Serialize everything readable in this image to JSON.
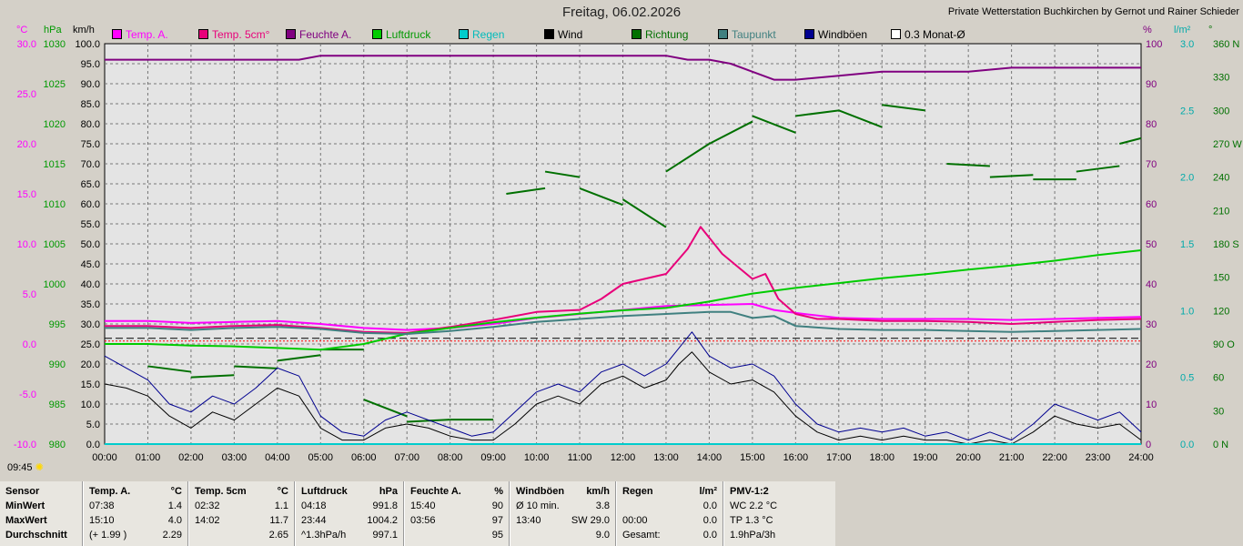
{
  "header": {
    "title": "Freitag, 06.02.2026",
    "credit": "Private Wetterstation Buchkirchen by Gernot und Rainer Schieder",
    "time_marker": "09:45"
  },
  "units": {
    "temp": "°C",
    "pressure": "hPa",
    "wind": "km/h",
    "humidity": "%",
    "rain": "l/m²",
    "direction": "°"
  },
  "legend": [
    {
      "label": "Temp. A.",
      "color": "#ff00ff",
      "text_color": "#ff00ff"
    },
    {
      "label": "Temp. 5cm°",
      "color": "#e8007a",
      "text_color": "#e8007a"
    },
    {
      "label": "Feuchte A.",
      "color": "#800080",
      "text_color": "#800080"
    },
    {
      "label": "Luftdruck",
      "color": "#00cc00",
      "text_color": "#009900"
    },
    {
      "label": "Regen",
      "color": "#00cccc",
      "text_color": "#00bbbb"
    },
    {
      "label": "Wind",
      "color": "#000000",
      "text_color": "#000000"
    },
    {
      "label": "Richtung",
      "color": "#007000",
      "text_color": "#007000"
    },
    {
      "label": "Taupunkt",
      "color": "#408080",
      "text_color": "#408080"
    },
    {
      "label": "Windböen",
      "color": "#000090",
      "text_color": "#000000"
    },
    {
      "label": "0.3 Monat-Ø",
      "color": "#ffffff",
      "text_color": "#000000"
    }
  ],
  "chart_data": {
    "type": "line",
    "x_ticks": [
      "00:00",
      "01:00",
      "02:00",
      "03:00",
      "04:00",
      "05:00",
      "06:00",
      "07:00",
      "08:00",
      "09:00",
      "10:00",
      "11:00",
      "12:00",
      "13:00",
      "14:00",
      "15:00",
      "16:00",
      "17:00",
      "18:00",
      "19:00",
      "20:00",
      "21:00",
      "22:00",
      "23:00",
      "24:00"
    ],
    "axes": {
      "temp": {
        "min": -10,
        "max": 30,
        "ticks": [
          "30.0",
          "25.0",
          "20.0",
          "15.0",
          "10.0",
          "5.0",
          "0.0",
          "-5.0",
          "-10.0"
        ]
      },
      "pressure": {
        "min": 980,
        "max": 1030,
        "ticks": [
          "1030",
          "1025",
          "1020",
          "1015",
          "1010",
          "1005",
          "1000",
          "995",
          "990",
          "985",
          "980"
        ]
      },
      "wind": {
        "min": 0,
        "max": 100,
        "ticks": [
          "100.0",
          "95.0",
          "90.0",
          "85.0",
          "80.0",
          "75.0",
          "70.0",
          "65.0",
          "60.0",
          "55.0",
          "50.0",
          "45.0",
          "40.0",
          "35.0",
          "30.0",
          "25.0",
          "20.0",
          "15.0",
          "10.0",
          "5.0",
          "0.0"
        ]
      },
      "humidity": {
        "min": 0,
        "max": 100,
        "ticks": [
          "100",
          "90",
          "80",
          "70",
          "60",
          "50",
          "40",
          "30",
          "20",
          "10",
          "0"
        ]
      },
      "rain": {
        "min": 0,
        "max": 3,
        "ticks": [
          "3.0",
          "2.5",
          "2.0",
          "1.5",
          "1.0",
          "0.5",
          "0.0"
        ]
      },
      "direction": {
        "min": 0,
        "max": 360,
        "ticks": [
          "360 N",
          "330",
          "300",
          "270 W",
          "240",
          "210",
          "180 S",
          "150",
          "120",
          "90 O",
          "60",
          "30",
          "0 N"
        ]
      }
    },
    "series": [
      {
        "name": "Feuchte A.",
        "axis": "humidity",
        "x": [
          0,
          2,
          4,
          4.5,
          5,
          6,
          7,
          8,
          9,
          10,
          11,
          12,
          13,
          13.5,
          14,
          14.5,
          15,
          15.5,
          16,
          17,
          18,
          19,
          20,
          21,
          22,
          23,
          24
        ],
        "y": [
          96,
          96,
          96,
          96,
          97,
          97,
          97,
          97,
          97,
          97,
          97,
          97,
          97,
          96,
          96,
          95,
          93,
          91,
          91,
          92,
          93,
          93,
          93,
          94,
          94,
          94,
          94
        ]
      },
      {
        "name": "Temp. A.",
        "axis": "temp",
        "x": [
          0,
          1,
          2,
          3,
          4,
          5,
          6,
          7,
          8,
          9,
          10,
          11,
          12,
          13,
          14,
          15,
          15.5,
          16,
          17,
          18,
          19,
          20,
          21,
          22,
          23,
          24
        ],
        "y": [
          2.3,
          2.3,
          2.1,
          2.2,
          2.3,
          2.0,
          1.6,
          1.4,
          1.6,
          2.0,
          2.6,
          3.0,
          3.4,
          3.8,
          3.9,
          4.0,
          3.4,
          3.1,
          2.6,
          2.5,
          2.5,
          2.5,
          2.4,
          2.5,
          2.6,
          2.7
        ]
      },
      {
        "name": "Temp. 5cm°",
        "axis": "temp",
        "x": [
          0,
          1,
          2,
          3,
          4,
          5,
          6,
          7,
          8,
          9,
          10,
          11,
          11.5,
          12,
          12.5,
          13,
          13.5,
          13.8,
          14.3,
          15,
          15.3,
          15.6,
          16,
          16.5,
          17,
          18,
          19,
          20,
          21,
          22,
          23,
          24
        ],
        "y": [
          1.8,
          1.8,
          1.6,
          1.8,
          1.9,
          1.6,
          1.2,
          1.1,
          1.7,
          2.4,
          3.2,
          3.4,
          4.5,
          6.0,
          6.5,
          7.0,
          9.5,
          11.7,
          9.0,
          6.5,
          7.0,
          4.5,
          3.0,
          2.5,
          2.5,
          2.3,
          2.3,
          2.2,
          2.0,
          2.2,
          2.4,
          2.5
        ]
      },
      {
        "name": "Luftdruck",
        "axis": "pressure",
        "x": [
          0,
          1,
          2,
          3,
          4,
          5,
          6,
          7,
          8,
          9,
          10,
          11,
          12,
          13,
          14,
          15,
          16,
          17,
          18,
          19,
          20,
          21,
          22,
          23,
          24
        ],
        "y": [
          992.5,
          992.5,
          992.3,
          992.2,
          992.0,
          991.8,
          992.5,
          993.8,
          994.5,
          995.2,
          995.8,
          996.3,
          996.7,
          997.0,
          997.8,
          998.8,
          999.5,
          1000.1,
          1000.7,
          1001.2,
          1001.8,
          1002.3,
          1002.9,
          1003.6,
          1004.2
        ]
      },
      {
        "name": "Taupunkt",
        "axis": "temp",
        "x": [
          0,
          1,
          2,
          3,
          4,
          5,
          6,
          7,
          8,
          9,
          10,
          11,
          12,
          13,
          14,
          14.5,
          15,
          15.5,
          16,
          17,
          18,
          19,
          20,
          21,
          22,
          23,
          24
        ],
        "y": [
          1.6,
          1.6,
          1.4,
          1.6,
          1.7,
          1.5,
          1.1,
          1.0,
          1.3,
          1.7,
          2.2,
          2.5,
          2.8,
          3.0,
          3.2,
          3.2,
          2.6,
          2.8,
          1.8,
          1.5,
          1.4,
          1.4,
          1.3,
          1.2,
          1.3,
          1.4,
          1.5
        ]
      },
      {
        "name": "Windböen",
        "axis": "wind",
        "x": [
          0,
          0.5,
          1,
          1.5,
          2,
          2.5,
          3,
          3.5,
          4,
          4.5,
          5,
          5.5,
          6,
          6.5,
          7,
          7.5,
          8,
          8.5,
          9,
          9.5,
          10,
          10.5,
          11,
          11.5,
          12,
          12.5,
          13,
          13.3,
          13.6,
          14,
          14.5,
          15,
          15.5,
          16,
          16.5,
          17,
          17.5,
          18,
          18.5,
          19,
          19.5,
          20,
          20.5,
          21,
          21.5,
          22,
          22.5,
          23,
          23.5,
          24
        ],
        "y": [
          22,
          19,
          16,
          10,
          8,
          12,
          10,
          14,
          19,
          17,
          7,
          3,
          2,
          6,
          8,
          6,
          4,
          2,
          3,
          8,
          13,
          15,
          13,
          18,
          20,
          17,
          20,
          24,
          28,
          22,
          19,
          20,
          17,
          10,
          5,
          3,
          4,
          3,
          4,
          2,
          3,
          1,
          3,
          1,
          5,
          10,
          8,
          6,
          8,
          3
        ]
      },
      {
        "name": "Wind",
        "axis": "wind",
        "x": [
          0,
          0.5,
          1,
          1.5,
          2,
          2.5,
          3,
          3.5,
          4,
          4.5,
          5,
          5.5,
          6,
          6.5,
          7,
          7.5,
          8,
          8.5,
          9,
          9.5,
          10,
          10.5,
          11,
          11.5,
          12,
          12.5,
          13,
          13.3,
          13.6,
          14,
          14.5,
          15,
          15.5,
          16,
          16.5,
          17,
          17.5,
          18,
          18.5,
          19,
          19.5,
          20,
          20.5,
          21,
          21.5,
          22,
          22.5,
          23,
          23.5,
          24
        ],
        "y": [
          15,
          14,
          12,
          7,
          4,
          8,
          6,
          10,
          14,
          12,
          4,
          1,
          1,
          4,
          5,
          4,
          2,
          1,
          1,
          5,
          10,
          12,
          10,
          15,
          17,
          14,
          16,
          20,
          23,
          18,
          15,
          16,
          13,
          7,
          3,
          1,
          2,
          1,
          2,
          1,
          1,
          0,
          1,
          0,
          3,
          7,
          5,
          4,
          5,
          1
        ]
      },
      {
        "name": "Regen",
        "axis": "rain",
        "x": [
          0,
          24
        ],
        "y": [
          0,
          0
        ]
      }
    ],
    "direction_segments": [
      {
        "x": [
          0,
          1
        ],
        "y": [
          90,
          90
        ]
      },
      {
        "x": [
          1,
          2
        ],
        "y": [
          70,
          65
        ]
      },
      {
        "x": [
          2,
          3
        ],
        "y": [
          60,
          62
        ]
      },
      {
        "x": [
          3,
          4
        ],
        "y": [
          70,
          68
        ]
      },
      {
        "x": [
          4,
          5
        ],
        "y": [
          75,
          80
        ]
      },
      {
        "x": [
          5,
          6
        ],
        "y": [
          85,
          85
        ]
      },
      {
        "x": [
          6,
          7
        ],
        "y": [
          40,
          25
        ]
      },
      {
        "x": [
          7,
          8
        ],
        "y": [
          20,
          22
        ]
      },
      {
        "x": [
          8,
          9
        ],
        "y": [
          22,
          22
        ]
      },
      {
        "x": [
          9.3,
          10.2
        ],
        "y": [
          225,
          230
        ]
      },
      {
        "x": [
          10.2,
          11
        ],
        "y": [
          245,
          240
        ]
      },
      {
        "x": [
          11,
          12
        ],
        "y": [
          230,
          215
        ]
      },
      {
        "x": [
          12,
          13
        ],
        "y": [
          220,
          195
        ]
      },
      {
        "x": [
          13,
          14
        ],
        "y": [
          245,
          270
        ]
      },
      {
        "x": [
          14,
          15
        ],
        "y": [
          270,
          290
        ]
      },
      {
        "x": [
          15,
          16
        ],
        "y": [
          295,
          280
        ]
      },
      {
        "x": [
          16,
          17
        ],
        "y": [
          295,
          300
        ]
      },
      {
        "x": [
          17,
          18
        ],
        "y": [
          300,
          285
        ]
      },
      {
        "x": [
          18,
          19
        ],
        "y": [
          305,
          300
        ]
      },
      {
        "x": [
          19.5,
          20.5
        ],
        "y": [
          252,
          250
        ]
      },
      {
        "x": [
          20.5,
          21.5
        ],
        "y": [
          240,
          242
        ]
      },
      {
        "x": [
          21.5,
          22.5
        ],
        "y": [
          238,
          238
        ]
      },
      {
        "x": [
          22.5,
          23.5
        ],
        "y": [
          245,
          250
        ]
      },
      {
        "x": [
          23.5,
          24
        ],
        "y": [
          270,
          275
        ]
      }
    ],
    "reference_lines": [
      {
        "axis": "temp",
        "value": 0.3
      }
    ],
    "grid": true,
    "legend_position": "top"
  },
  "table": {
    "row_labels": [
      "Sensor",
      "MinWert",
      "MaxWert",
      "Durchschnitt"
    ],
    "columns": [
      {
        "title": "Temp. A.",
        "unit": "°C",
        "rows": [
          [
            "07:38",
            "1.4"
          ],
          [
            "15:10",
            "4.0"
          ],
          [
            "(+ 1.99 )",
            "2.29"
          ]
        ]
      },
      {
        "title": "Temp. 5cm",
        "unit": "°C",
        "rows": [
          [
            "02:32",
            "1.1"
          ],
          [
            "14:02",
            "11.7"
          ],
          [
            "",
            "2.65"
          ]
        ]
      },
      {
        "title": "Luftdruck",
        "unit": "hPa",
        "rows": [
          [
            "04:18",
            "991.8"
          ],
          [
            "23:44",
            "1004.2"
          ],
          [
            "^1.3hPa/h",
            "997.1"
          ]
        ]
      },
      {
        "title": "Feuchte A.",
        "unit": "%",
        "rows": [
          [
            "15:40",
            "90"
          ],
          [
            "03:56",
            "97"
          ],
          [
            "",
            "95"
          ]
        ]
      },
      {
        "title": "Windböen",
        "unit": "km/h",
        "rows": [
          [
            "Ø 10 min.",
            "3.8"
          ],
          [
            "13:40",
            "SW 29.0"
          ],
          [
            "",
            "9.0"
          ]
        ]
      },
      {
        "title": "Regen",
        "unit": "l/m²",
        "rows": [
          [
            "",
            "0.0"
          ],
          [
            "00:00",
            "0.0"
          ],
          [
            "Gesamt:",
            "0.0"
          ]
        ]
      },
      {
        "title": "PMV-1:2",
        "unit": "",
        "rows": [
          [
            "WC 2.2 °C",
            ""
          ],
          [
            "TP 1.3 °C",
            ""
          ],
          [
            "1.9hPa/3h",
            ""
          ]
        ]
      }
    ]
  }
}
